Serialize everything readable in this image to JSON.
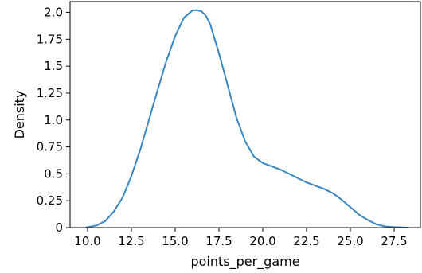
{
  "chart_data": {
    "type": "line",
    "title": "",
    "xlabel": "points_per_game",
    "ylabel": "Density",
    "xlim": [
      9.0,
      29.0
    ],
    "ylim": [
      0,
      2.1
    ],
    "grid": false,
    "x_ticks": [
      10.0,
      12.5,
      15.0,
      17.5,
      20.0,
      22.5,
      25.0,
      27.5
    ],
    "x_tick_labels": [
      "10.0",
      "12.5",
      "15.0",
      "17.5",
      "20.0",
      "22.5",
      "25.0",
      "27.5"
    ],
    "y_ticks": [
      0,
      0.25,
      0.5,
      0.75,
      1.0,
      1.25,
      1.5,
      1.75,
      2.0
    ],
    "y_tick_labels": [
      "0",
      "0.25",
      "0.5",
      "0.75",
      "1.0",
      "1.25",
      "1.5",
      "1.75",
      "2.0"
    ],
    "series": [
      {
        "color": "#3a86c1",
        "x": [
          9.9,
          10.5,
          11.0,
          11.5,
          12.0,
          12.5,
          13.0,
          13.5,
          14.0,
          14.5,
          15.0,
          15.5,
          16.0,
          16.25,
          16.5,
          16.75,
          17.0,
          17.5,
          18.0,
          18.5,
          19.0,
          19.5,
          20.0,
          20.5,
          21.0,
          21.5,
          22.0,
          22.5,
          23.0,
          23.5,
          24.0,
          24.5,
          25.0,
          25.5,
          26.0,
          26.5,
          27.0,
          27.5,
          28.3
        ],
        "y": [
          0.0,
          0.02,
          0.06,
          0.15,
          0.28,
          0.48,
          0.72,
          1.0,
          1.28,
          1.55,
          1.78,
          1.95,
          2.02,
          2.02,
          2.01,
          1.97,
          1.89,
          1.62,
          1.32,
          1.02,
          0.8,
          0.66,
          0.6,
          0.57,
          0.54,
          0.5,
          0.46,
          0.42,
          0.39,
          0.36,
          0.32,
          0.26,
          0.19,
          0.12,
          0.07,
          0.03,
          0.01,
          0.005,
          0.0
        ]
      }
    ]
  }
}
